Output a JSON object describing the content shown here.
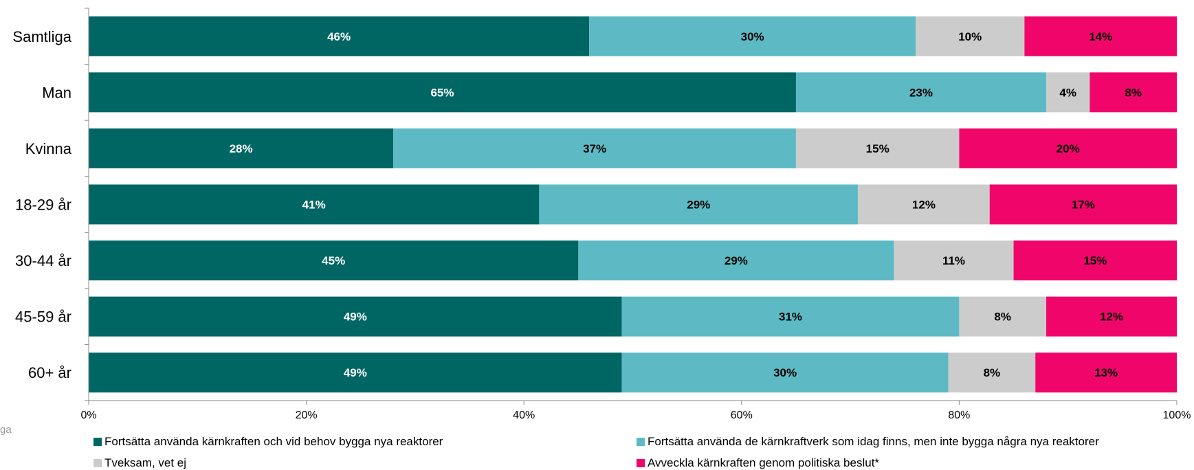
{
  "chart_data": {
    "type": "bar",
    "orientation": "horizontal",
    "stacked": true,
    "categories": [
      "Samtliga",
      "Man",
      "Kvinna",
      "18-29 år",
      "30-44 år",
      "45-59 år",
      "60+ år"
    ],
    "series": [
      {
        "name": "Fortsätta använda kärnkraften och vid behov bygga nya reaktorer",
        "color": "#006664",
        "label_color": "#ffffff",
        "values": [
          46,
          65,
          28,
          41,
          45,
          49,
          49
        ]
      },
      {
        "name": "Fortsätta använda de kärnkraftverk som idag finns, men inte bygga några nya reaktorer",
        "color": "#5dbac5",
        "label_color": "#000000",
        "values": [
          30,
          23,
          37,
          29,
          29,
          31,
          30
        ]
      },
      {
        "name": "Tveksam, vet ej",
        "color": "#cccccc",
        "label_color": "#000000",
        "values": [
          10,
          4,
          15,
          12,
          11,
          8,
          8
        ]
      },
      {
        "name": "Avveckla kärnkraften genom politiska beslut*",
        "color": "#f0066a",
        "label_color": "#000000",
        "values": [
          14,
          8,
          20,
          17,
          15,
          12,
          13
        ]
      }
    ],
    "segment_bounds": [
      [
        0,
        46,
        76,
        86,
        100
      ],
      [
        0,
        65,
        88,
        92,
        100
      ],
      [
        0,
        28,
        65,
        80,
        100
      ],
      [
        0,
        41.4,
        70.7,
        82.8,
        100
      ],
      [
        0,
        45,
        74,
        85,
        100
      ],
      [
        0,
        49,
        80,
        88,
        100
      ],
      [
        0,
        49,
        79,
        87,
        100
      ]
    ],
    "xlim": [
      0,
      100
    ],
    "xticks": [
      "0%",
      "20%",
      "40%",
      "60%",
      "80%",
      "100%"
    ],
    "legend_position": "bottom",
    "grid": false
  },
  "stray_text": "ga"
}
